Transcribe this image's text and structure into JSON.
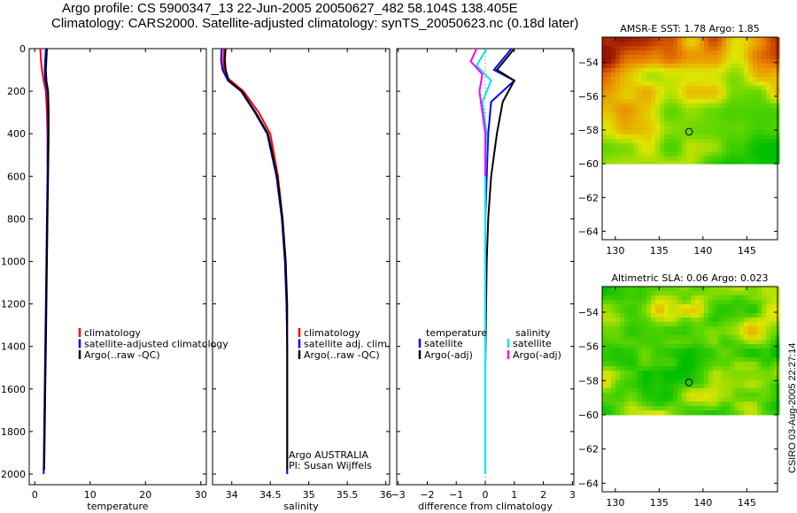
{
  "header": {
    "line1": "Argo profile: CS 5900347_13 22-Jun-2005 20050627_482 58.104S 138.405E",
    "line2": "Climatology: CARS2000. Satellite-adjusted climatology: synTS_20050623.nc (0.18d later)"
  },
  "credit": "CSIRO 03-Aug-2005 22:27:14",
  "colors": {
    "climatology": "#ff0000",
    "satellite": "#0000ff",
    "argo": "#000000",
    "salinity_satellite": "#00e5ee",
    "salinity_argo": "#ff00ff"
  },
  "chart_data": [
    {
      "type": "line",
      "id": "temperature",
      "xlabel": "temperature",
      "ylabel": "",
      "xlim": [
        -1,
        31
      ],
      "ylim": [
        2050,
        0
      ],
      "xticks": [
        0,
        10,
        20,
        30
      ],
      "yticks": [
        0,
        200,
        400,
        600,
        800,
        1000,
        1200,
        1400,
        1600,
        1800,
        2000
      ],
      "series": [
        {
          "name": "climatology",
          "color": "#ff0000",
          "x": [
            1.0,
            1.1,
            1.3,
            1.6,
            2.0,
            2.2,
            2.3,
            2.3,
            2.3
          ],
          "y": [
            0,
            50,
            100,
            150,
            200,
            300,
            400,
            500,
            550
          ]
        },
        {
          "name": "satellite-adjusted climatology",
          "color": "#0000ff",
          "x": [
            2.0,
            1.9,
            1.8,
            1.9,
            2.3,
            2.4,
            2.4,
            2.3,
            2.2,
            2.1,
            2.0,
            1.9,
            1.8,
            1.7,
            1.6
          ],
          "y": [
            0,
            50,
            100,
            150,
            200,
            300,
            400,
            600,
            800,
            1000,
            1200,
            1400,
            1600,
            1800,
            2000
          ]
        },
        {
          "name": "Argo(..raw -QC)",
          "color": "#000000",
          "x": [
            2.2,
            2.1,
            2.0,
            2.1,
            2.4,
            2.5,
            2.5,
            2.4,
            2.3,
            2.2,
            2.1,
            2.0,
            1.9,
            1.8,
            1.7
          ],
          "y": [
            0,
            50,
            100,
            150,
            200,
            300,
            400,
            600,
            800,
            1000,
            1200,
            1400,
            1600,
            1800,
            1980
          ]
        }
      ],
      "legend": [
        "climatology",
        "satellite-adjusted climatology",
        "Argo(..raw -QC)"
      ]
    },
    {
      "type": "line",
      "id": "salinity",
      "xlabel": "salinity",
      "xlim": [
        33.75,
        36.05
      ],
      "ylim": [
        2050,
        0
      ],
      "xticks": [
        34,
        34.5,
        35,
        35.5,
        36
      ],
      "series": [
        {
          "name": "climatology",
          "color": "#ff0000",
          "x": [
            33.9,
            33.89,
            33.9,
            33.95,
            34.15,
            34.35,
            34.5,
            34.6,
            34.66,
            34.7,
            34.72
          ],
          "y": [
            0,
            50,
            100,
            140,
            200,
            300,
            400,
            600,
            800,
            1000,
            1300
          ]
        },
        {
          "name": "satellite adj. clim.",
          "color": "#0000ff",
          "x": [
            33.87,
            33.86,
            33.88,
            33.95,
            34.12,
            34.3,
            34.46,
            34.58,
            34.65,
            34.69,
            34.71,
            34.72,
            34.72,
            34.72
          ],
          "y": [
            0,
            50,
            100,
            150,
            200,
            300,
            400,
            600,
            800,
            1000,
            1200,
            1400,
            1600,
            2000
          ]
        },
        {
          "name": "Argo(..raw -QC)",
          "color": "#000000",
          "x": [
            33.92,
            33.91,
            33.92,
            33.96,
            34.13,
            34.31,
            34.47,
            34.59,
            34.66,
            34.7,
            34.72,
            34.72,
            34.72
          ],
          "y": [
            0,
            50,
            100,
            150,
            200,
            300,
            400,
            600,
            800,
            1000,
            1200,
            1400,
            1980
          ]
        }
      ],
      "legend": [
        "climatology",
        "satellite adj. clim.",
        "Argo(..raw -QC)"
      ],
      "annotation": [
        "Argo AUSTRALIA",
        "PI: Susan Wijffels"
      ]
    },
    {
      "type": "line",
      "id": "difference",
      "xlabel": "difference from climatology",
      "xlim": [
        -3.05,
        3.05
      ],
      "ylim": [
        2050,
        0
      ],
      "xticks": [
        -3,
        -2,
        -1,
        0,
        1,
        2,
        3
      ],
      "series": [
        {
          "name": "temperature satellite",
          "color": "#0000ff",
          "x": [
            0.9,
            0.6,
            0.3,
            1.0,
            0.2,
            0.1,
            0.05,
            0.0,
            0.0,
            0.0,
            0.0
          ],
          "y": [
            0,
            50,
            100,
            150,
            250,
            400,
            600,
            800,
            1000,
            1500,
            2000
          ]
        },
        {
          "name": "temperature Argo(-adj)",
          "color": "#000000",
          "x": [
            1.0,
            0.7,
            0.4,
            1.0,
            0.6,
            0.4,
            0.2,
            0.1,
            0.05,
            0.0,
            0.0
          ],
          "y": [
            0,
            50,
            100,
            150,
            250,
            400,
            600,
            800,
            1000,
            1500,
            1980
          ]
        },
        {
          "name": "salinity satellite",
          "color": "#00e5ee",
          "x": [
            0.05,
            -0.3,
            0.2,
            -0.1,
            0.05,
            0.0,
            0.0,
            0.0,
            0.0
          ],
          "y": [
            0,
            80,
            150,
            250,
            400,
            600,
            1000,
            1500,
            2000
          ]
        },
        {
          "name": "salinity Argo(-adj)",
          "color": "#ff00ff",
          "x": [
            -0.3,
            -0.5,
            -0.1,
            -0.2,
            0.0,
            0.0
          ],
          "y": [
            0,
            60,
            120,
            200,
            400,
            600
          ]
        }
      ],
      "legend": {
        "left_title": "temperature",
        "right_title": "salinity",
        "left": [
          "satellite",
          "Argo(-adj)"
        ],
        "right": [
          "satellite",
          "Argo(-adj)"
        ]
      }
    },
    {
      "type": "heatmap",
      "id": "sst-map",
      "title": "AMSR-E SST: 1.78 Argo: 1.85",
      "xlim": [
        128.5,
        148.5
      ],
      "ylim": [
        -64.5,
        -52.5
      ],
      "data_ylim": [
        -60,
        -52.5
      ],
      "xticks": [
        130,
        135,
        140,
        145
      ],
      "yticks": [
        -54,
        -56,
        -58,
        -60,
        -62,
        -64
      ],
      "marker": {
        "lon": 138.405,
        "lat": -58.104
      }
    },
    {
      "type": "heatmap",
      "id": "sla-map",
      "title": "Altimetric SLA: 0.06 Argo: 0.023",
      "xlim": [
        128.5,
        148.5
      ],
      "ylim": [
        -64.5,
        -52.5
      ],
      "data_ylim": [
        -60,
        -52.5
      ],
      "xticks": [
        130,
        135,
        140,
        145
      ],
      "yticks": [
        -54,
        -56,
        -58,
        -60,
        -62,
        -64
      ],
      "marker": {
        "lon": 138.405,
        "lat": -58.104
      }
    }
  ]
}
